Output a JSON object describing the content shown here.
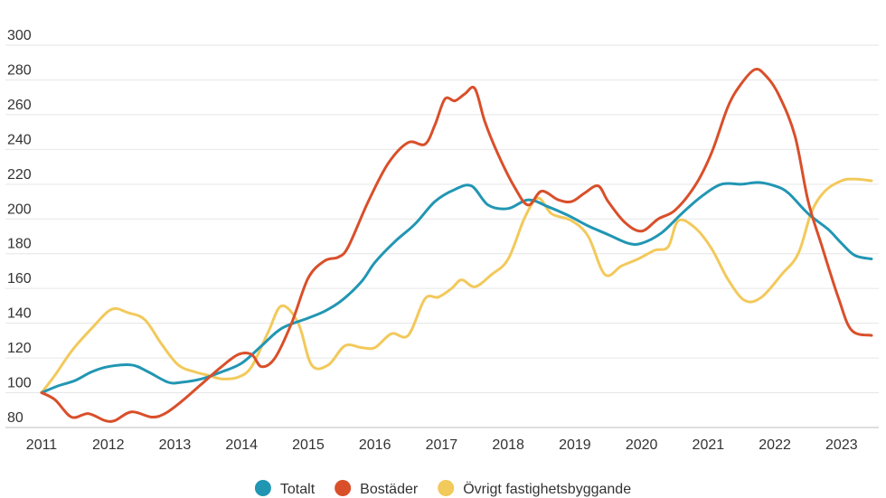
{
  "chart_data": {
    "type": "line",
    "title": "",
    "xlabel": "",
    "ylabel": "",
    "xlim": [
      2011,
      2023.45
    ],
    "ylim": [
      80,
      300
    ],
    "y_ticks": [
      80,
      100,
      120,
      140,
      160,
      180,
      200,
      220,
      240,
      260,
      280,
      300
    ],
    "x_ticks": [
      2011,
      2012,
      2013,
      2014,
      2015,
      2016,
      2017,
      2018,
      2019,
      2020,
      2021,
      2022,
      2023
    ],
    "grid": "horizontal",
    "legend_position": "bottom-center",
    "series": [
      {
        "name": "Totalt",
        "color": "#2196b3",
        "points": [
          [
            2011,
            100
          ],
          [
            2011.25,
            104
          ],
          [
            2011.5,
            107
          ],
          [
            2011.75,
            112
          ],
          [
            2012,
            115
          ],
          [
            2012.35,
            116
          ],
          [
            2012.6,
            112
          ],
          [
            2012.9,
            106
          ],
          [
            2013.1,
            106
          ],
          [
            2013.4,
            108
          ],
          [
            2013.7,
            112
          ],
          [
            2014,
            117
          ],
          [
            2014.3,
            127
          ],
          [
            2014.6,
            137
          ],
          [
            2015,
            143
          ],
          [
            2015.25,
            147
          ],
          [
            2015.5,
            153
          ],
          [
            2015.8,
            164
          ],
          [
            2016,
            175
          ],
          [
            2016.3,
            187
          ],
          [
            2016.6,
            197
          ],
          [
            2016.9,
            210
          ],
          [
            2017.2,
            217
          ],
          [
            2017.45,
            219
          ],
          [
            2017.7,
            208
          ],
          [
            2018,
            206
          ],
          [
            2018.3,
            211
          ],
          [
            2018.6,
            207
          ],
          [
            2018.9,
            202
          ],
          [
            2019.2,
            196
          ],
          [
            2019.5,
            191
          ],
          [
            2019.8,
            186
          ],
          [
            2020,
            186
          ],
          [
            2020.3,
            192
          ],
          [
            2020.6,
            203
          ],
          [
            2020.9,
            213
          ],
          [
            2021.2,
            220
          ],
          [
            2021.5,
            220
          ],
          [
            2021.75,
            221
          ],
          [
            2022,
            219
          ],
          [
            2022.2,
            215
          ],
          [
            2022.5,
            203
          ],
          [
            2022.8,
            194
          ],
          [
            2023,
            186
          ],
          [
            2023.2,
            179
          ],
          [
            2023.45,
            177
          ]
        ]
      },
      {
        "name": "Bostäder",
        "color": "#d94f2a",
        "points": [
          [
            2011,
            100
          ],
          [
            2011.2,
            96
          ],
          [
            2011.45,
            86
          ],
          [
            2011.7,
            88
          ],
          [
            2011.95,
            84
          ],
          [
            2012.1,
            84
          ],
          [
            2012.35,
            89
          ],
          [
            2012.65,
            86
          ],
          [
            2012.85,
            88
          ],
          [
            2013.1,
            95
          ],
          [
            2013.4,
            105
          ],
          [
            2013.7,
            115
          ],
          [
            2013.95,
            122
          ],
          [
            2014.15,
            122
          ],
          [
            2014.3,
            115
          ],
          [
            2014.5,
            120
          ],
          [
            2014.75,
            140
          ],
          [
            2015,
            166
          ],
          [
            2015.25,
            176
          ],
          [
            2015.45,
            178
          ],
          [
            2015.6,
            184
          ],
          [
            2015.9,
            210
          ],
          [
            2016.2,
            232
          ],
          [
            2016.5,
            244
          ],
          [
            2016.75,
            243
          ],
          [
            2016.9,
            254
          ],
          [
            2017.05,
            269
          ],
          [
            2017.2,
            268
          ],
          [
            2017.35,
            272
          ],
          [
            2017.5,
            275
          ],
          [
            2017.65,
            256
          ],
          [
            2017.85,
            237
          ],
          [
            2018.1,
            218
          ],
          [
            2018.3,
            208
          ],
          [
            2018.5,
            216
          ],
          [
            2018.75,
            211
          ],
          [
            2018.95,
            210
          ],
          [
            2019.15,
            215
          ],
          [
            2019.35,
            219
          ],
          [
            2019.5,
            210
          ],
          [
            2019.75,
            198
          ],
          [
            2020,
            193
          ],
          [
            2020.25,
            200
          ],
          [
            2020.5,
            205
          ],
          [
            2020.8,
            219
          ],
          [
            2021.05,
            238
          ],
          [
            2021.3,
            265
          ],
          [
            2021.5,
            278
          ],
          [
            2021.7,
            286
          ],
          [
            2021.85,
            283
          ],
          [
            2022.05,
            272
          ],
          [
            2022.3,
            248
          ],
          [
            2022.5,
            210
          ],
          [
            2022.7,
            185
          ],
          [
            2022.95,
            155
          ],
          [
            2023.15,
            136
          ],
          [
            2023.45,
            133
          ]
        ]
      },
      {
        "name": "Övrigt fastighetsbyggande",
        "color": "#f2c95b",
        "points": [
          [
            2011,
            100
          ],
          [
            2011.2,
            110
          ],
          [
            2011.45,
            124
          ],
          [
            2011.75,
            137
          ],
          [
            2012.05,
            148
          ],
          [
            2012.3,
            146
          ],
          [
            2012.55,
            142
          ],
          [
            2012.8,
            128
          ],
          [
            2013.05,
            116
          ],
          [
            2013.3,
            112
          ],
          [
            2013.5,
            110
          ],
          [
            2013.7,
            108
          ],
          [
            2013.95,
            109
          ],
          [
            2014.15,
            115
          ],
          [
            2014.4,
            135
          ],
          [
            2014.6,
            150
          ],
          [
            2014.85,
            140
          ],
          [
            2015.05,
            116
          ],
          [
            2015.3,
            116
          ],
          [
            2015.55,
            127
          ],
          [
            2015.8,
            126
          ],
          [
            2016,
            126
          ],
          [
            2016.25,
            134
          ],
          [
            2016.5,
            133
          ],
          [
            2016.75,
            154
          ],
          [
            2016.95,
            155
          ],
          [
            2017.15,
            160
          ],
          [
            2017.3,
            165
          ],
          [
            2017.5,
            161
          ],
          [
            2017.75,
            168
          ],
          [
            2018,
            177
          ],
          [
            2018.25,
            201
          ],
          [
            2018.45,
            212
          ],
          [
            2018.65,
            203
          ],
          [
            2018.95,
            199
          ],
          [
            2019.2,
            190
          ],
          [
            2019.45,
            168
          ],
          [
            2019.7,
            173
          ],
          [
            2019.95,
            177
          ],
          [
            2020.2,
            182
          ],
          [
            2020.4,
            184
          ],
          [
            2020.55,
            199
          ],
          [
            2020.8,
            195
          ],
          [
            2021.05,
            183
          ],
          [
            2021.3,
            165
          ],
          [
            2021.55,
            153
          ],
          [
            2021.8,
            155
          ],
          [
            2022.1,
            168
          ],
          [
            2022.35,
            180
          ],
          [
            2022.55,
            204
          ],
          [
            2022.75,
            216
          ],
          [
            2023,
            222
          ],
          [
            2023.2,
            223
          ],
          [
            2023.45,
            222
          ]
        ]
      }
    ]
  }
}
